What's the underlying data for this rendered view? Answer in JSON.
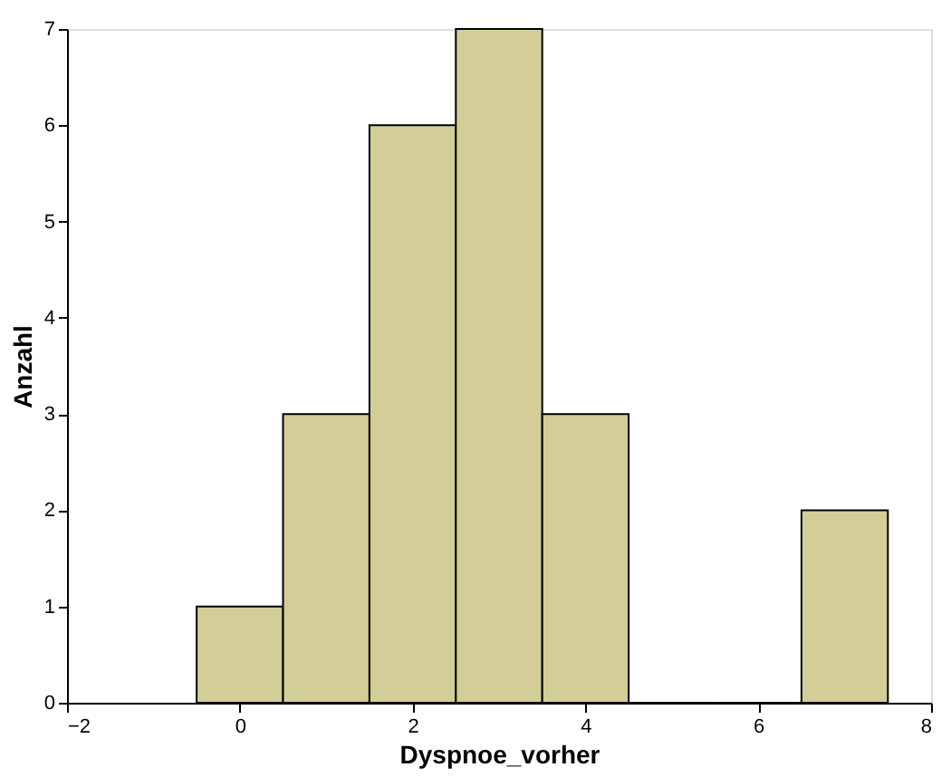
{
  "chart_data": {
    "type": "histogram",
    "xlabel": "Dyspnoe_vorher",
    "ylabel": "Anzahl",
    "bins": [
      -0.5,
      0.5,
      1.5,
      2.5,
      3.5,
      4.5,
      5.5,
      6.5,
      7.5
    ],
    "values": [
      1,
      3,
      6,
      7,
      3,
      0,
      0,
      2
    ],
    "color": "#d3ce97",
    "xlim": [
      -2,
      8
    ],
    "xticks": [
      -2,
      0,
      2,
      4,
      6,
      8
    ],
    "ylim": [
      0,
      7
    ],
    "yticks": [
      0,
      1,
      2,
      3,
      4,
      5,
      6,
      7
    ],
    "grid": false
  }
}
